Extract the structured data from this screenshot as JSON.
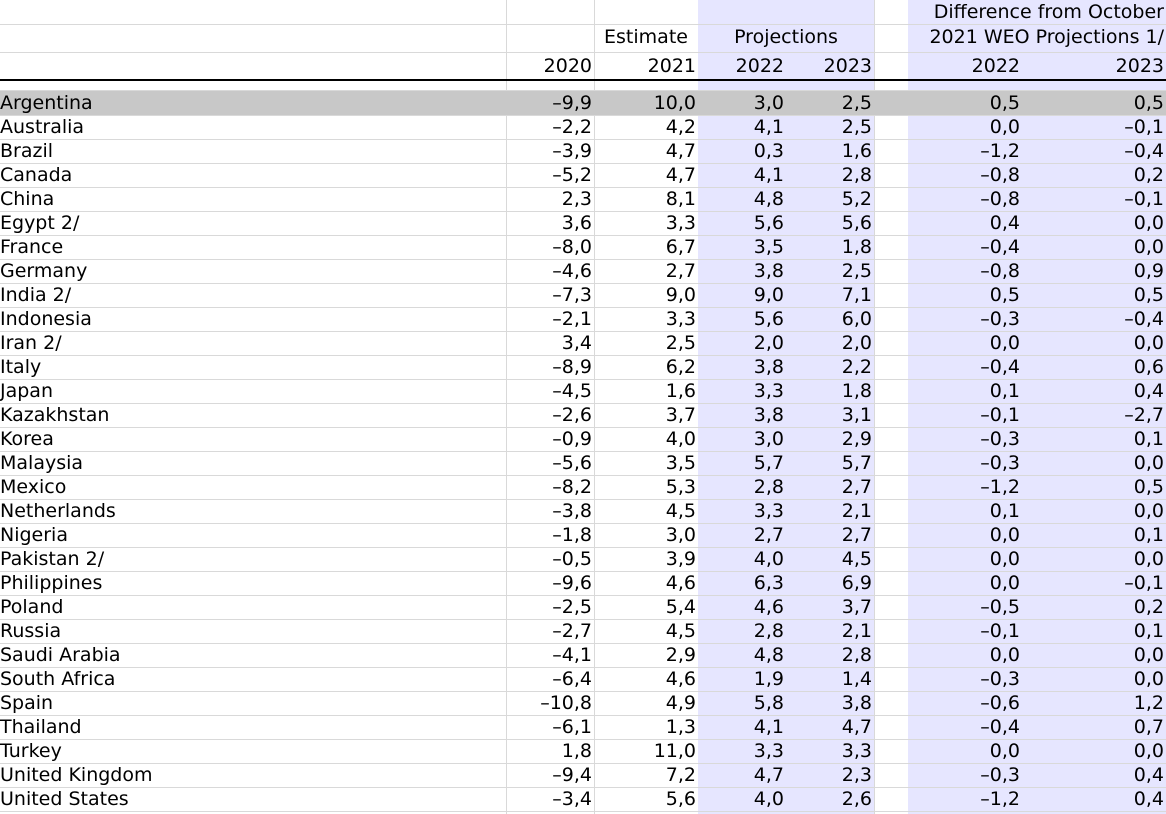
{
  "header": {
    "estimate": "Estimate",
    "projections": "Projections",
    "difference_line1": "Difference from October",
    "difference_line2": "2021 WEO Projections 1/",
    "years": [
      "2020",
      "2021",
      "2022",
      "2023",
      "2022",
      "2023"
    ]
  },
  "rows": [
    {
      "country": "Argentina",
      "v": [
        "–9,9",
        "10,0",
        "3,0",
        "2,5",
        "0,5",
        "0,5"
      ]
    },
    {
      "country": "Australia",
      "v": [
        "–2,2",
        "4,2",
        "4,1",
        "2,5",
        "0,0",
        "–0,1"
      ]
    },
    {
      "country": "Brazil",
      "v": [
        "–3,9",
        "4,7",
        "0,3",
        "1,6",
        "–1,2",
        "–0,4"
      ]
    },
    {
      "country": "Canada",
      "v": [
        "–5,2",
        "4,7",
        "4,1",
        "2,8",
        "–0,8",
        "0,2"
      ]
    },
    {
      "country": "China",
      "v": [
        "2,3",
        "8,1",
        "4,8",
        "5,2",
        "–0,8",
        "–0,1"
      ]
    },
    {
      "country": "Egypt 2/",
      "v": [
        "3,6",
        "3,3",
        "5,6",
        "5,6",
        "0,4",
        "0,0"
      ]
    },
    {
      "country": "France",
      "v": [
        "–8,0",
        "6,7",
        "3,5",
        "1,8",
        "–0,4",
        "0,0"
      ]
    },
    {
      "country": "Germany",
      "v": [
        "–4,6",
        "2,7",
        "3,8",
        "2,5",
        "–0,8",
        "0,9"
      ]
    },
    {
      "country": "India 2/",
      "v": [
        "–7,3",
        "9,0",
        "9,0",
        "7,1",
        "0,5",
        "0,5"
      ]
    },
    {
      "country": "Indonesia",
      "v": [
        "–2,1",
        "3,3",
        "5,6",
        "6,0",
        "–0,3",
        "–0,4"
      ]
    },
    {
      "country": "Iran 2/",
      "v": [
        "3,4",
        "2,5",
        "2,0",
        "2,0",
        "0,0",
        "0,0"
      ]
    },
    {
      "country": "Italy",
      "v": [
        "–8,9",
        "6,2",
        "3,8",
        "2,2",
        "–0,4",
        "0,6"
      ]
    },
    {
      "country": "Japan",
      "v": [
        "–4,5",
        "1,6",
        "3,3",
        "1,8",
        "0,1",
        "0,4"
      ]
    },
    {
      "country": "Kazakhstan",
      "v": [
        "–2,6",
        "3,7",
        "3,8",
        "3,1",
        "–0,1",
        "–2,7"
      ]
    },
    {
      "country": "Korea",
      "v": [
        "–0,9",
        "4,0",
        "3,0",
        "2,9",
        "–0,3",
        "0,1"
      ]
    },
    {
      "country": "Malaysia",
      "v": [
        "–5,6",
        "3,5",
        "5,7",
        "5,7",
        "–0,3",
        "0,0"
      ]
    },
    {
      "country": "Mexico",
      "v": [
        "–8,2",
        "5,3",
        "2,8",
        "2,7",
        "–1,2",
        "0,5"
      ]
    },
    {
      "country": "Netherlands",
      "v": [
        "–3,8",
        "4,5",
        "3,3",
        "2,1",
        "0,1",
        "0,0"
      ]
    },
    {
      "country": "Nigeria",
      "v": [
        "–1,8",
        "3,0",
        "2,7",
        "2,7",
        "0,0",
        "0,1"
      ]
    },
    {
      "country": "Pakistan 2/",
      "v": [
        "–0,5",
        "3,9",
        "4,0",
        "4,5",
        "0,0",
        "0,0"
      ]
    },
    {
      "country": "Philippines",
      "v": [
        "–9,6",
        "4,6",
        "6,3",
        "6,9",
        "0,0",
        "–0,1"
      ]
    },
    {
      "country": "Poland",
      "v": [
        "–2,5",
        "5,4",
        "4,6",
        "3,7",
        "–0,5",
        "0,2"
      ]
    },
    {
      "country": "Russia",
      "v": [
        "–2,7",
        "4,5",
        "2,8",
        "2,1",
        "–0,1",
        "0,1"
      ]
    },
    {
      "country": "Saudi Arabia",
      "v": [
        "–4,1",
        "2,9",
        "4,8",
        "2,8",
        "0,0",
        "0,0"
      ]
    },
    {
      "country": "South Africa",
      "v": [
        "–6,4",
        "4,6",
        "1,9",
        "1,4",
        "–0,3",
        "0,0"
      ]
    },
    {
      "country": "Spain",
      "v": [
        "–10,8",
        "4,9",
        "5,8",
        "3,8",
        "–0,6",
        "1,2"
      ]
    },
    {
      "country": "Thailand",
      "v": [
        "–6,1",
        "1,3",
        "4,1",
        "4,7",
        "–0,4",
        "0,7"
      ]
    },
    {
      "country": "Turkey",
      "v": [
        "1,8",
        "11,0",
        "3,3",
        "3,3",
        "0,0",
        "0,0"
      ]
    },
    {
      "country": "United Kingdom",
      "v": [
        "–9,4",
        "7,2",
        "4,7",
        "2,3",
        "–0,3",
        "0,4"
      ]
    },
    {
      "country": "United States",
      "v": [
        "–3,4",
        "5,6",
        "4,0",
        "2,6",
        "–1,2",
        "0,4"
      ]
    }
  ],
  "selected_row": 0,
  "colors": {
    "projection_bg": "#e6e6ff",
    "selection_bg": "#c8c8c8",
    "gridline": "#d9d9d9"
  }
}
